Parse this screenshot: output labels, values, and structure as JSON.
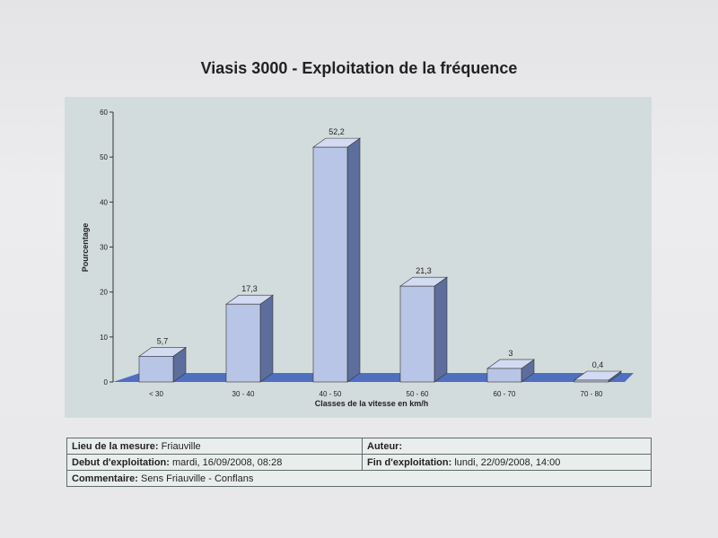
{
  "title": "Viasis 3000 - Exploitation de la fréquence",
  "chart_data": {
    "type": "bar",
    "categories": [
      "< 30",
      "30 - 40",
      "40 - 50",
      "50 - 60",
      "60 - 70",
      "70 - 80"
    ],
    "values": [
      5.7,
      17.3,
      52.2,
      21.3,
      3,
      0.4
    ],
    "value_labels": [
      "5,7",
      "17,3",
      "52,2",
      "21,3",
      "3",
      "0,4"
    ],
    "title": "",
    "xlabel": "Classes de la vitesse en km/h",
    "ylabel": "Pourcentage",
    "ylim": [
      0,
      60
    ],
    "yticks": [
      0,
      10,
      20,
      30,
      40,
      50,
      60
    ],
    "grid": false,
    "style": "3d",
    "colors": {
      "bar_front": "#b9c5e6",
      "bar_side": "#5e6e9c",
      "bar_top": "#d2dbf1",
      "floor": "#4f6fbf",
      "plot_bg": "#d3dcdd"
    }
  },
  "info": {
    "lieu_label": "Lieu de la mesure:",
    "lieu_value": "Friauville",
    "auteur_label": "Auteur:",
    "auteur_value": "",
    "debut_label": "Debut d'exploitation:",
    "debut_value": "mardi, 16/09/2008, 08:28",
    "fin_label": "Fin d'exploitation:",
    "fin_value": "lundi, 22/09/2008, 14:00",
    "commentaire_label": "Commentaire:",
    "commentaire_value": "Sens Friauville - Conflans"
  }
}
